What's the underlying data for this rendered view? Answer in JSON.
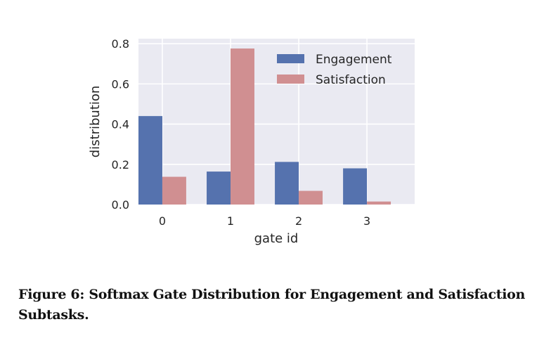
{
  "chart_data": {
    "type": "bar",
    "title": "",
    "xlabel": "gate id",
    "ylabel": "distribution",
    "categories": [
      "0",
      "1",
      "2",
      "3"
    ],
    "series": [
      {
        "name": "Engagement",
        "values": [
          0.44,
          0.164,
          0.212,
          0.18
        ],
        "color": "#5572ae"
      },
      {
        "name": "Satisfaction",
        "values": [
          0.138,
          0.776,
          0.068,
          0.015
        ],
        "color": "#d08f91"
      }
    ],
    "ylim": [
      0,
      0.825
    ],
    "yticks": [
      "0.0",
      "0.2",
      "0.4",
      "0.6",
      "0.8"
    ],
    "grid": true,
    "background": "#eaeaf2",
    "legend": "top-right"
  },
  "caption": "Figure 6: Softmax Gate Distribution for Engagement and Satisfaction Subtasks."
}
